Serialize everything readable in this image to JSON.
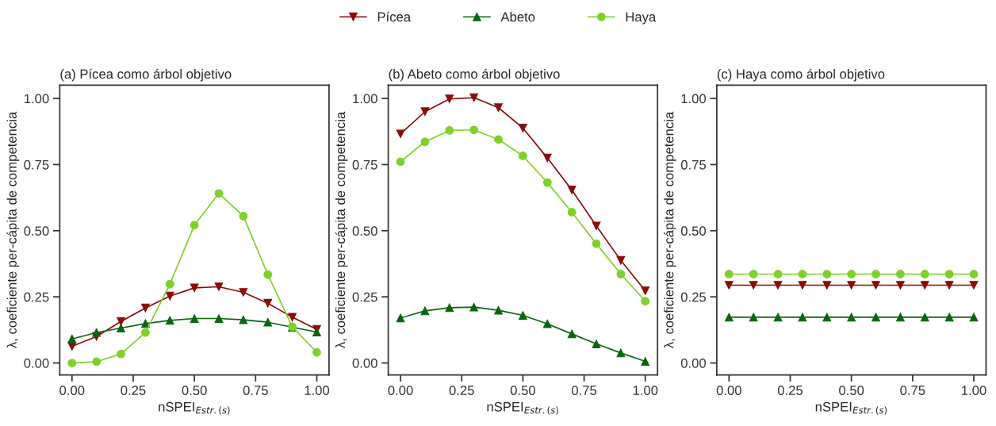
{
  "chart_data": [
    {
      "type": "line",
      "title": "(a) Pícea como árbol objetivo",
      "xlabel": "nSPEI$_{Estr.(s)}$",
      "ylabel": "λ, coeficiente per-cápita de competencia",
      "legend": "top",
      "grid": false,
      "x": [
        0,
        0.1,
        0.2,
        0.3,
        0.4,
        0.5,
        0.6,
        0.7,
        0.8,
        0.9,
        1.0
      ],
      "xlim": [
        -0.05,
        1.05
      ],
      "ylim": [
        -0.045,
        1.05
      ],
      "xticks": [
        {
          "value": 0,
          "label": "0.00"
        },
        {
          "value": 0.25,
          "label": "0.25"
        },
        {
          "value": 0.5,
          "label": "0.50"
        },
        {
          "value": 0.75,
          "label": "0.75"
        },
        {
          "value": 1,
          "label": "1.00"
        }
      ],
      "yticks": [
        {
          "value": 0,
          "label": "0.00"
        },
        {
          "value": 0.25,
          "label": "0.25"
        },
        {
          "value": 0.5,
          "label": "0.50"
        },
        {
          "value": 0.75,
          "label": "0.75"
        },
        {
          "value": 1,
          "label": "1.00"
        }
      ],
      "series": [
        {
          "name": "Pícea",
          "color": "#8b0a0a",
          "marker": "triangle_down",
          "values": [
            0.063,
            0.1,
            0.157,
            0.208,
            0.253,
            0.284,
            0.288,
            0.267,
            0.226,
            0.173,
            0.127
          ]
        },
        {
          "name": "Abeto",
          "color": "#0a6410",
          "marker": "triangle",
          "values": [
            0.091,
            0.115,
            0.132,
            0.149,
            0.161,
            0.168,
            0.168,
            0.163,
            0.154,
            0.135,
            0.117
          ]
        },
        {
          "name": "Haya",
          "color": "#7ed02a",
          "marker": "circle",
          "values": [
            0.0,
            0.005,
            0.034,
            0.115,
            0.298,
            0.521,
            0.641,
            0.555,
            0.334,
            0.137,
            0.04
          ]
        }
      ]
    },
    {
      "type": "line",
      "title": "(b) Abeto como árbol objetivo",
      "xlabel": "nSPEI$_{Estr.(s)}$",
      "ylabel": "λ, coeficiente per-cápita de competencia",
      "grid": false,
      "x": [
        0,
        0.1,
        0.2,
        0.3,
        0.4,
        0.5,
        0.6,
        0.7,
        0.8,
        0.9,
        1.0
      ],
      "xlim": [
        -0.05,
        1.05
      ],
      "ylim": [
        -0.045,
        1.05
      ],
      "xticks": [
        {
          "value": 0,
          "label": "0.00"
        },
        {
          "value": 0.25,
          "label": "0.25"
        },
        {
          "value": 0.5,
          "label": "0.50"
        },
        {
          "value": 0.75,
          "label": "0.75"
        },
        {
          "value": 1,
          "label": "1.00"
        }
      ],
      "yticks": [
        {
          "value": 0,
          "label": "0.00"
        },
        {
          "value": 0.25,
          "label": "0.25"
        },
        {
          "value": 0.5,
          "label": "0.50"
        },
        {
          "value": 0.75,
          "label": "0.75"
        },
        {
          "value": 1,
          "label": "1.00"
        }
      ],
      "series": [
        {
          "color": "#8b0a0a",
          "marker": "triangle_down",
          "values": [
            0.866,
            0.95,
            0.998,
            1.003,
            0.965,
            0.888,
            0.775,
            0.654,
            0.518,
            0.388,
            0.273
          ]
        },
        {
          "color": "#0a6410",
          "marker": "triangle",
          "values": [
            0.17,
            0.197,
            0.209,
            0.211,
            0.199,
            0.18,
            0.148,
            0.11,
            0.072,
            0.038,
            0.006
          ]
        },
        {
          "color": "#7ed02a",
          "marker": "circle",
          "values": [
            0.761,
            0.836,
            0.879,
            0.881,
            0.845,
            0.783,
            0.682,
            0.57,
            0.451,
            0.336,
            0.234
          ]
        }
      ]
    },
    {
      "type": "line",
      "title": "(c) Haya como árbol objetivo",
      "xlabel": "nSPEI$_{Estr.(s)}$",
      "ylabel": "λ, coeficiente per-cápita de competencia",
      "grid": false,
      "x": [
        0,
        0.1,
        0.2,
        0.3,
        0.4,
        0.5,
        0.6,
        0.7,
        0.8,
        0.9,
        1.0
      ],
      "xlim": [
        -0.05,
        1.05
      ],
      "ylim": [
        -0.045,
        1.05
      ],
      "xticks": [
        {
          "value": 0,
          "label": "0.00"
        },
        {
          "value": 0.25,
          "label": "0.25"
        },
        {
          "value": 0.5,
          "label": "0.50"
        },
        {
          "value": 0.75,
          "label": "0.75"
        },
        {
          "value": 1,
          "label": "1.00"
        }
      ],
      "yticks": [
        {
          "value": 0,
          "label": "0.00"
        },
        {
          "value": 0.25,
          "label": "0.25"
        },
        {
          "value": 0.5,
          "label": "0.50"
        },
        {
          "value": 0.75,
          "label": "0.75"
        },
        {
          "value": 1,
          "label": "1.00"
        }
      ],
      "series": [
        {
          "color": "#8b0a0a",
          "marker": "triangle_down",
          "values": [
            0.294,
            0.294,
            0.294,
            0.294,
            0.294,
            0.294,
            0.294,
            0.294,
            0.294,
            0.294,
            0.294
          ]
        },
        {
          "color": "#0a6410",
          "marker": "triangle",
          "values": [
            0.173,
            0.173,
            0.173,
            0.173,
            0.173,
            0.173,
            0.173,
            0.173,
            0.173,
            0.173,
            0.173
          ]
        },
        {
          "color": "#7ed02a",
          "marker": "circle",
          "values": [
            0.336,
            0.336,
            0.336,
            0.336,
            0.336,
            0.336,
            0.336,
            0.336,
            0.336,
            0.336,
            0.336
          ]
        }
      ]
    }
  ]
}
